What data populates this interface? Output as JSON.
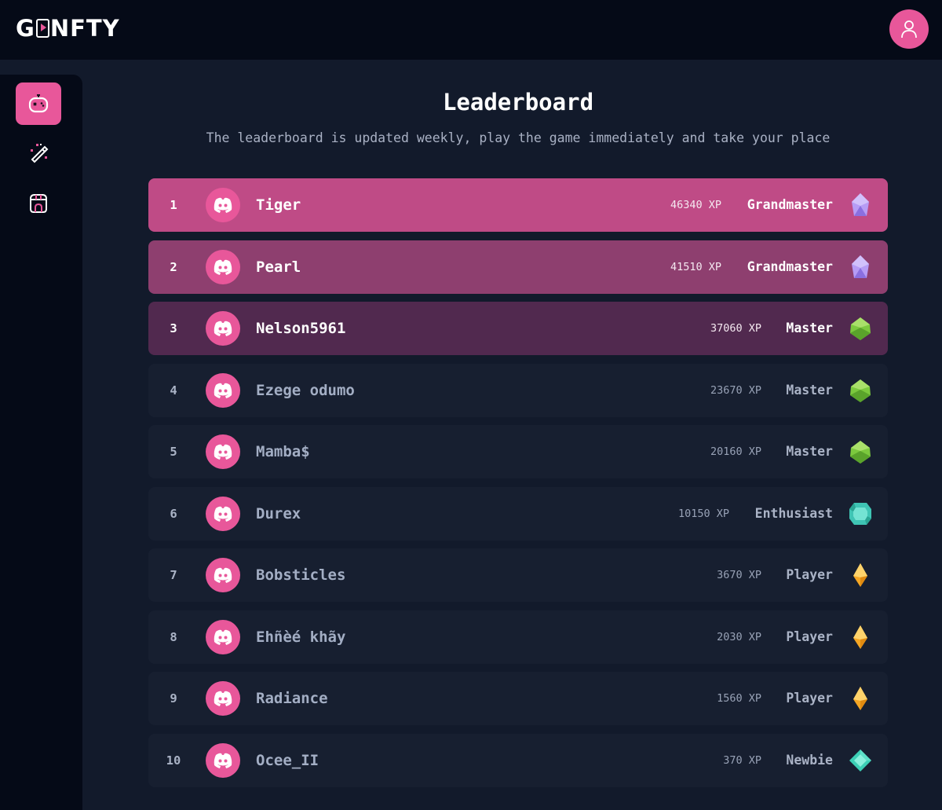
{
  "header": {
    "logo_left": "G",
    "logo_right": "NFTY",
    "profile_icon": "user-icon"
  },
  "sidebar": {
    "items": [
      {
        "icon": "game-controller-icon",
        "active": true
      },
      {
        "icon": "magic-wand-icon",
        "active": false
      },
      {
        "icon": "store-icon",
        "active": false
      }
    ]
  },
  "main": {
    "title": "Leaderboard",
    "subtitle": "The leaderboard is updated weekly, play the game immediately and take your place"
  },
  "leaderboard": [
    {
      "rank": "1",
      "name": "Tiger",
      "xp": "46340 XP",
      "tier": "Grandmaster",
      "gem": "purple-gem-icon"
    },
    {
      "rank": "2",
      "name": "Pearl",
      "xp": "41510 XP",
      "tier": "Grandmaster",
      "gem": "purple-gem-icon"
    },
    {
      "rank": "3",
      "name": "Nelson5961",
      "xp": "37060 XP",
      "tier": "Master",
      "gem": "green-gem-icon"
    },
    {
      "rank": "4",
      "name": "Ezege odumo",
      "xp": "23670 XP",
      "tier": "Master",
      "gem": "green-gem-icon"
    },
    {
      "rank": "5",
      "name": "Mamba$",
      "xp": "20160 XP",
      "tier": "Master",
      "gem": "green-gem-icon"
    },
    {
      "rank": "6",
      "name": "Durex",
      "xp": "10150 XP",
      "tier": "Enthusiast",
      "gem": "teal-gem-icon"
    },
    {
      "rank": "7",
      "name": "Bobsticles",
      "xp": "3670 XP",
      "tier": "Player",
      "gem": "orange-gem-icon"
    },
    {
      "rank": "8",
      "name": "Ehñèé khãy",
      "xp": "2030 XP",
      "tier": "Player",
      "gem": "orange-gem-icon"
    },
    {
      "rank": "9",
      "name": "Radiance",
      "xp": "1560 XP",
      "tier": "Player",
      "gem": "orange-gem-icon"
    },
    {
      "rank": "10",
      "name": "Ocee_II",
      "xp": "370 XP",
      "tier": "Newbie",
      "gem": "cyan-gem-icon"
    }
  ],
  "colors": {
    "accent": "#e8579a",
    "rank1": "#bf4b86",
    "rank2": "#8e3f6f",
    "rank3": "#51294f",
    "row": "#171f30",
    "background": "#121a2b"
  }
}
